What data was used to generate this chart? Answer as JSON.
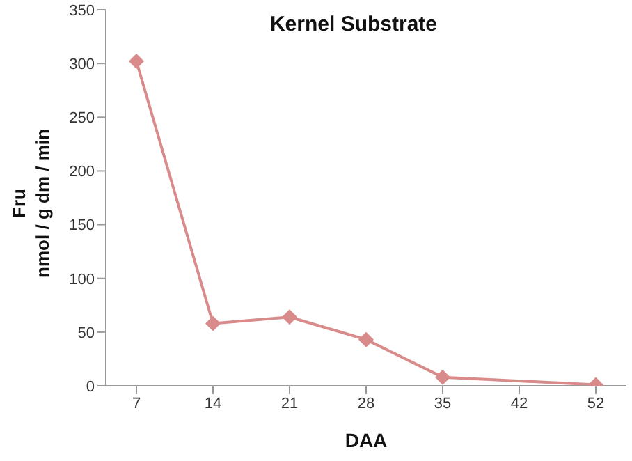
{
  "chart_data": {
    "type": "line",
    "title": "Kernel Substrate",
    "xlabel": "DAA",
    "ylabel": "Fru\nnmol / g dm / min",
    "categories": [
      "7",
      "14",
      "21",
      "28",
      "35",
      "42",
      "52"
    ],
    "series": [
      {
        "color": "#d98a8a",
        "values": [
          302,
          58,
          64,
          43,
          8,
          null,
          1
        ]
      }
    ],
    "ylim": [
      0,
      350
    ],
    "yticks": [
      0,
      50,
      100,
      150,
      200,
      250,
      300,
      350
    ],
    "marker": "diamond",
    "line_style": "solid"
  }
}
